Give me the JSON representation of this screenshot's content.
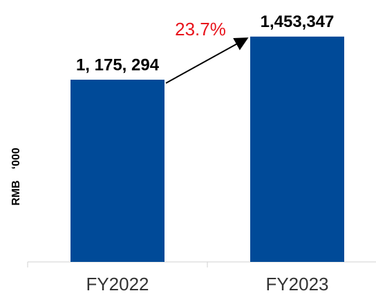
{
  "chart_data": {
    "type": "bar",
    "y_label": "RMB　‘000",
    "annotation": "23.7%",
    "categories": [
      "FY2022",
      "FY2023"
    ],
    "values": [
      1175294,
      1453347
    ],
    "value_labels": [
      "1, 175, 294",
      "1,453,347"
    ],
    "color": "#004a98",
    "ylim": [
      0,
      1600000
    ]
  }
}
